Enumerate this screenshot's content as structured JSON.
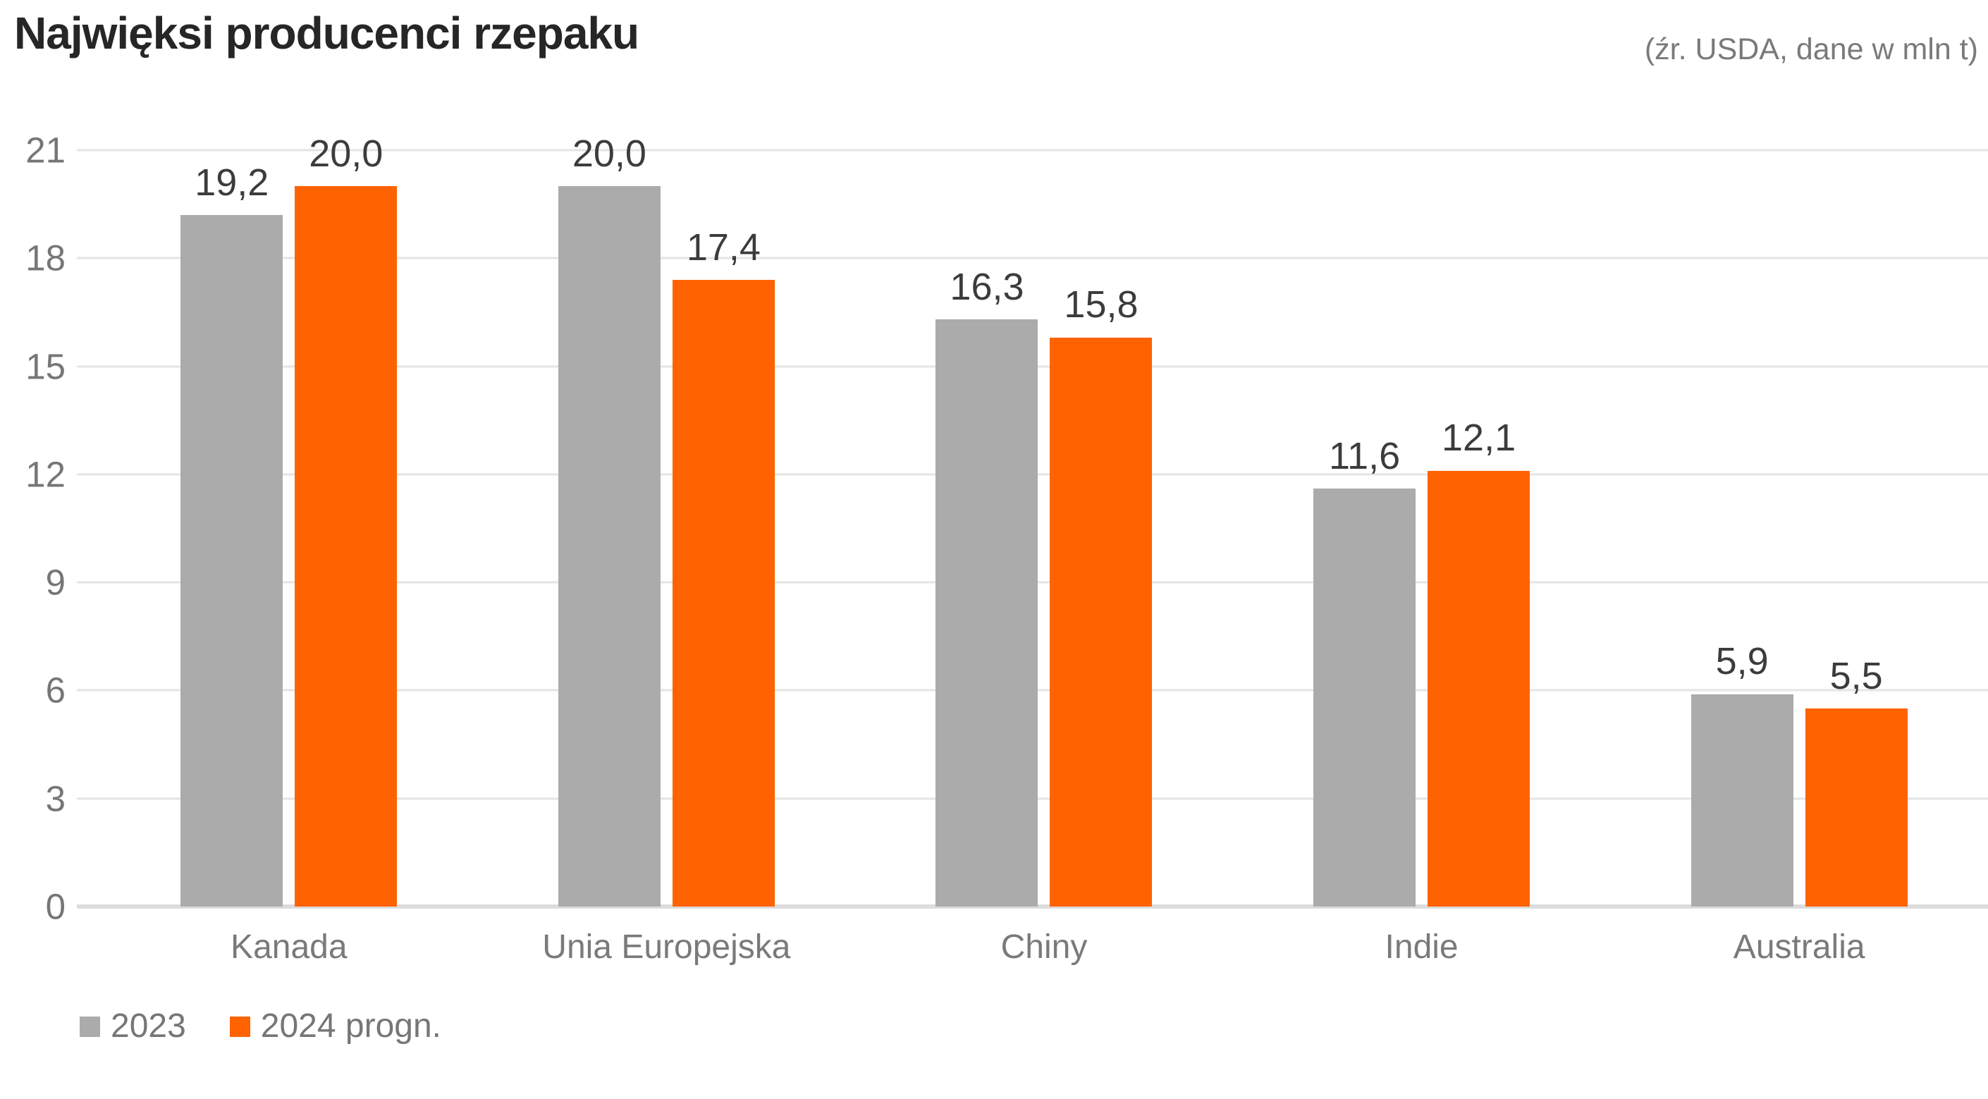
{
  "chart_data": {
    "type": "bar",
    "title": "Najwięksi producenci rzepaku",
    "source_note": "(źr. USDA, dane w mln t)",
    "unit": "mln t",
    "categories": [
      "Kanada",
      "Unia Europejska",
      "Chiny",
      "Indie",
      "Australia"
    ],
    "series": [
      {
        "name": "2023",
        "color": "#ABABAB",
        "values": [
          19.2,
          20.0,
          16.3,
          11.6,
          5.9
        ],
        "value_labels": [
          "19,2",
          "20,0",
          "16,3",
          "11,6",
          "5,9"
        ]
      },
      {
        "name": "2024 progn.",
        "color": "#FF6200",
        "values": [
          20.0,
          17.4,
          15.8,
          12.1,
          5.5
        ],
        "value_labels": [
          "20,0",
          "17,4",
          "15,8",
          "12,1",
          "5,5"
        ]
      }
    ],
    "ylim": [
      0,
      21
    ],
    "yticks": [
      0,
      3,
      6,
      9,
      12,
      15,
      18,
      21
    ],
    "grid": true,
    "legend_position": "bottom-left"
  },
  "colors": {
    "gridline": "#E4E4E4",
    "axis_line": "#DCDCDC",
    "title_text": "#262626",
    "secondary_text": "#767676",
    "data_label_text": "#3C3C3C",
    "background": "#FFFFFF"
  }
}
